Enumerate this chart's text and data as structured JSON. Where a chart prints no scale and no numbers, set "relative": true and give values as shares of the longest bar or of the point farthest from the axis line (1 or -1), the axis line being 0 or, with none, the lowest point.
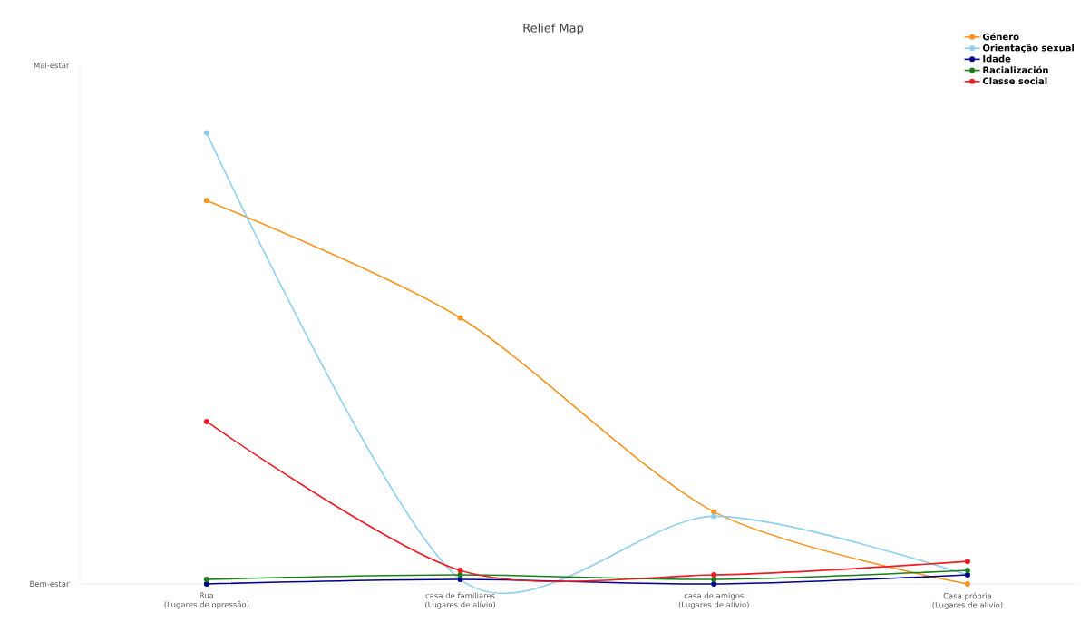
{
  "chart_data": {
    "type": "line",
    "title": "Relief Map",
    "categories": [
      "Rua\n(Lugares de opressão)",
      "casa de familiares\n(Lugares de alívio)",
      "casa de amigos\n(Lugares de alívio)",
      "Casa própria\n(Lugares de alívio)"
    ],
    "relative": true,
    "annotations": [
      "Mal-estar",
      "Bem-estar"
    ],
    "series": [
      {
        "name": "Género",
        "color": "#f7941d",
        "values": [
          0.85,
          0.59,
          0.16,
          0.0
        ]
      },
      {
        "name": "Orientação sexual",
        "color": "#8ecfef",
        "values": [
          1.0,
          0.01,
          0.15,
          0.02
        ]
      },
      {
        "name": "Idade",
        "color": "#00008b",
        "values": [
          0.0,
          0.01,
          0.0,
          0.02
        ]
      },
      {
        "name": "Racialización",
        "color": "#1a7f1a",
        "values": [
          0.01,
          0.02,
          0.01,
          0.03
        ]
      },
      {
        "name": "Classe social",
        "color": "#ee1c25",
        "values": [
          0.36,
          0.03,
          0.02,
          0.05
        ]
      }
    ],
    "legend": "top right",
    "marker": "circle",
    "line_style": "solid",
    "grid": false
  }
}
